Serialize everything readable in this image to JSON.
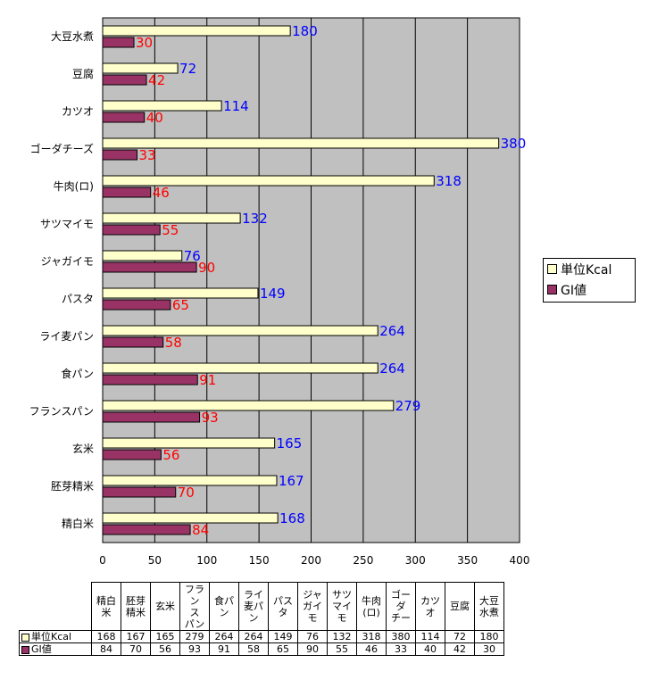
{
  "chart_data": {
    "type": "bar",
    "orientation": "horizontal",
    "categories": [
      "精白米",
      "胚芽精米",
      "玄米",
      "フランスパン",
      "食パン",
      "ライ麦パン",
      "パスタ",
      "ジャガイモ",
      "サツマイモ",
      "牛肉(ロ)",
      "ゴーダチーズ",
      "カツオ",
      "豆腐",
      "大豆水煮"
    ],
    "series": [
      {
        "name": "単位Kcal",
        "values": [
          168,
          167,
          165,
          279,
          264,
          264,
          149,
          76,
          132,
          318,
          380,
          114,
          72,
          180
        ],
        "color": "#ffffcc",
        "label_color": "#0000ff"
      },
      {
        "name": "GI値",
        "values": [
          84,
          70,
          56,
          93,
          91,
          58,
          65,
          90,
          55,
          46,
          33,
          40,
          42,
          30
        ],
        "color": "#993366",
        "label_color": "#ff0000"
      }
    ],
    "xlim": [
      0,
      400
    ],
    "xticks": [
      0,
      50,
      100,
      150,
      200,
      250,
      300,
      350,
      400
    ],
    "grid": true,
    "plot_background": "#c0c0c0",
    "legend_position": "right",
    "data_table": {
      "headers": [
        "精白\n米",
        "胚芽\n精米",
        "玄米",
        "フラン\nス\nパン",
        "食パ\nン",
        "ライ\n麦パ\nン",
        "パス\nタ",
        "ジャ\nガイ\nモ",
        "サツ\nマイ\nモ",
        "牛肉\n(ロ)",
        "ゴー\nダ\nチー",
        "カツ\nオ",
        "豆腐",
        "大豆\n水煮"
      ]
    }
  }
}
